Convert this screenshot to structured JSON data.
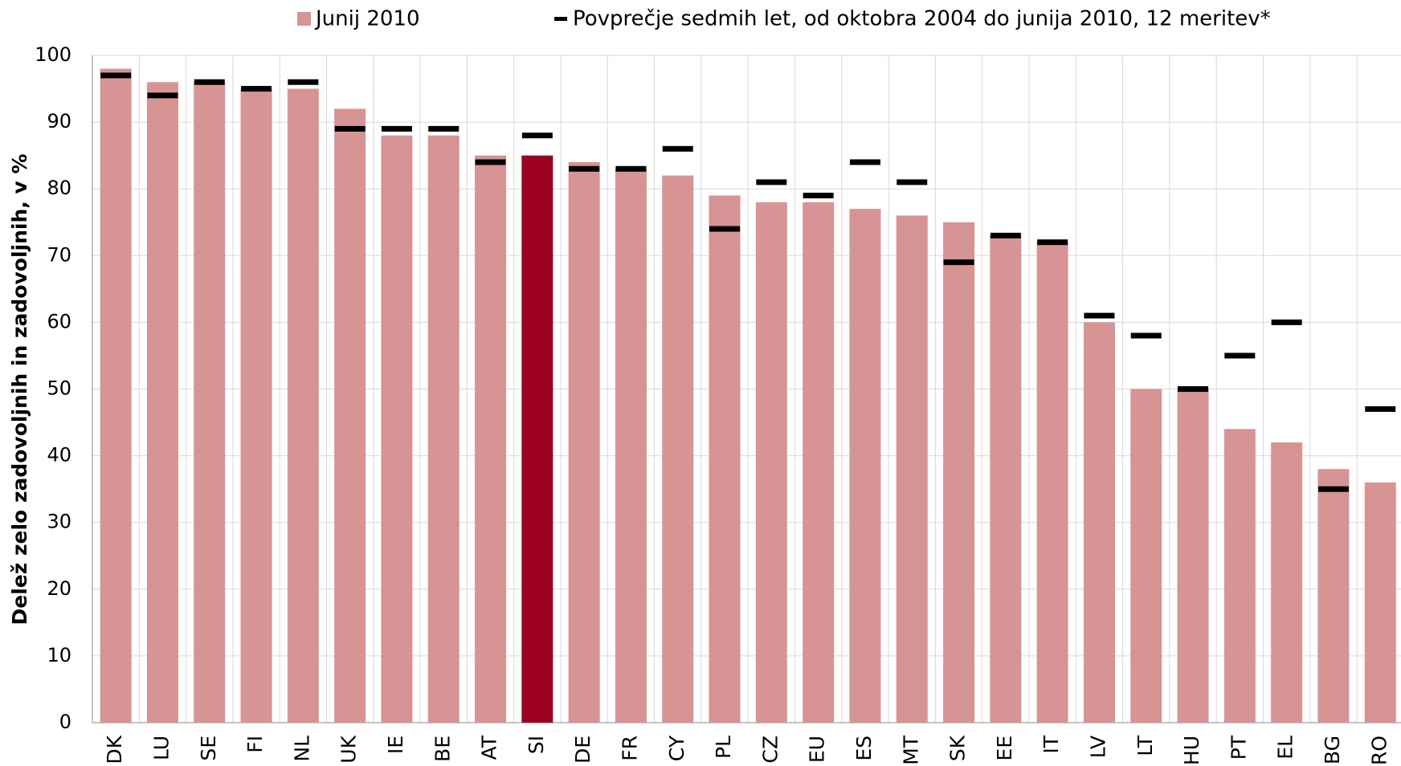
{
  "chart_data": {
    "type": "bar",
    "y_label": "Delež zelo zadovoljnih in zadovoljnih, v %",
    "categories": [
      "DK",
      "LU",
      "SE",
      "FI",
      "NL",
      "UK",
      "IE",
      "BE",
      "AT",
      "SI",
      "DE",
      "FR",
      "CY",
      "PL",
      "CZ",
      "EU",
      "ES",
      "MT",
      "SK",
      "EE",
      "IT",
      "LV",
      "LT",
      "HU",
      "PT",
      "EL",
      "BG",
      "RO"
    ],
    "series": [
      {
        "name": "Junij 2010",
        "color": "#d69494",
        "colors": [
          "#d69494",
          "#d69494",
          "#d69494",
          "#d69494",
          "#d69494",
          "#d69494",
          "#d69494",
          "#d69494",
          "#d69494",
          "#9b0020",
          "#d69494",
          "#d69494",
          "#d69494",
          "#d69494",
          "#d69494",
          "#d69494",
          "#d69494",
          "#d69494",
          "#d69494",
          "#d69494",
          "#d69494",
          "#d69494",
          "#d69494",
          "#d69494",
          "#d69494",
          "#d69494",
          "#d69494",
          "#d69494"
        ],
        "values": [
          98,
          96,
          96,
          95,
          95,
          92,
          88,
          88,
          85,
          85,
          84,
          83,
          82,
          79,
          78,
          78,
          77,
          76,
          75,
          73,
          72,
          60,
          50,
          50,
          44,
          42,
          38,
          36
        ]
      },
      {
        "name": "Povprečje sedmih let, od oktobra 2004 do junija 2010, 12 meritev*",
        "color": "#000000",
        "marker": "dash",
        "values": [
          97,
          94,
          96,
          95,
          96,
          89,
          89,
          89,
          84,
          88,
          83,
          83,
          86,
          74,
          81,
          79,
          84,
          81,
          69,
          73,
          72,
          61,
          58,
          50,
          55,
          60,
          35,
          47
        ]
      }
    ],
    "ylim": [
      0,
      100
    ],
    "yticks": [
      0,
      10,
      20,
      30,
      40,
      50,
      60,
      70,
      80,
      90,
      100
    ],
    "grid": true
  }
}
